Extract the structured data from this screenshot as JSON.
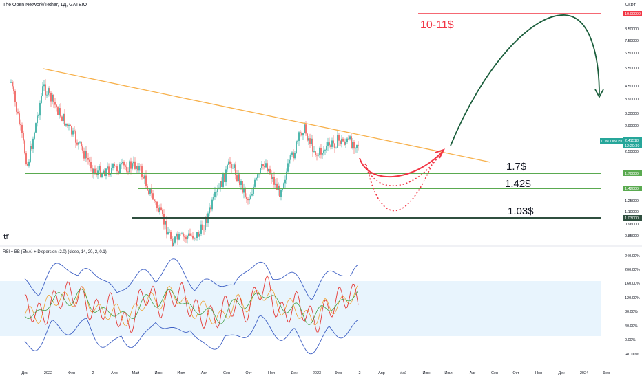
{
  "header": {
    "symbol_title": "The Open Network/Tether, 1Д, GATEIO",
    "indicator_title": "RSI + BB (EMA) + Dispersion (2.0) (close, 14, 20, 2, 0.1)"
  },
  "price_axis": {
    "currency": "USDT",
    "ticks": [
      "10.00000",
      "8.50000",
      "7.50000",
      "6.50000",
      "5.50000",
      "4.50000",
      "3.90000",
      "3.30000",
      "2.90000",
      "2.50000",
      "1.70000",
      "1.42000",
      "1.25000",
      "1.10000",
      "1.03000",
      "0.96000",
      "0.85000"
    ],
    "ticker_label": "TONCOINUSDT",
    "last_price": "2.41518",
    "countdown": "12:20:39"
  },
  "rsi_axis": {
    "ticks": [
      "240.00%",
      "200.00%",
      "160.00%",
      "120.00%",
      "80.00%",
      "40.00%",
      "0.00%",
      "-40.00%"
    ]
  },
  "time_axis": {
    "labels": [
      "Дек",
      "2022",
      "Фев",
      "2",
      "Апр",
      "Май",
      "Июн",
      "Июл",
      "Авг",
      "Сен",
      "Окт",
      "Ноя",
      "Дек",
      "2023",
      "Фев",
      "2",
      "Апр",
      "Май",
      "Июн",
      "Июл",
      "Авг",
      "Сен",
      "Окт",
      "Ноя",
      "Дек",
      "2024",
      "Фев"
    ]
  },
  "annotations": {
    "target": "10-11$",
    "level_1": "1.7$",
    "level_2": "1.42$",
    "level_3": "1.03$"
  },
  "colors": {
    "resistance_line": "#f7b04a",
    "support_1": "#5aaa50",
    "support_2": "#5aaa50",
    "support_3": "#2f4f3f",
    "target_line": "#f23645",
    "target_label_bg": "#f23645",
    "arrow_up": "#1b5e3c",
    "curve_red": "#f23645",
    "rsi_band": "#3d5fc4",
    "rsi_fill": "#e3f2fd",
    "last_price_bg": "#26a69a"
  },
  "chart_data": [
    {
      "type": "candlestick",
      "title": "The Open Network/Tether, 1Д, GATEIO",
      "scale": "log",
      "ylim": [
        0.8,
        11
      ],
      "levels": [
        10.0,
        1.7,
        1.42,
        1.03
      ],
      "last_price": 2.41518
    },
    {
      "type": "line",
      "title": "RSI + BB (EMA) + Dispersion (2.0) (close, 14, 20, 2, 0.1)",
      "ylim": [
        -40,
        240
      ]
    }
  ]
}
